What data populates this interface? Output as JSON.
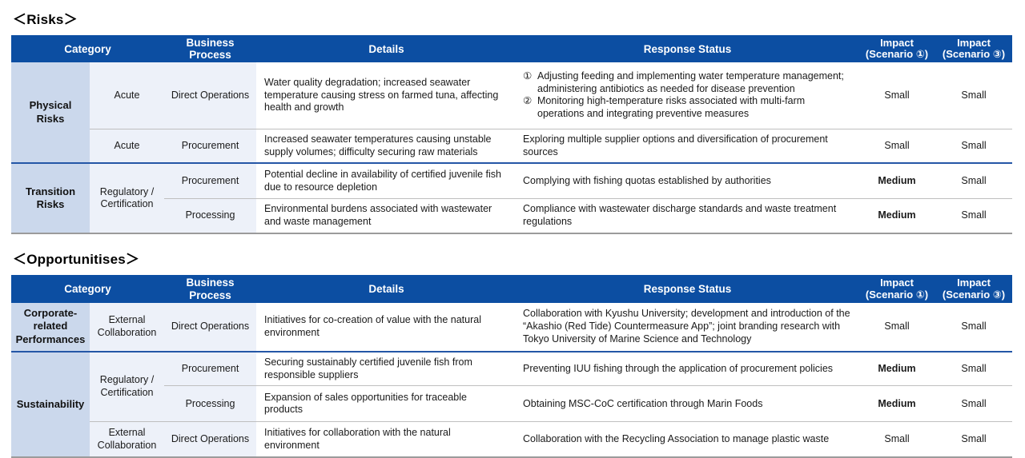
{
  "colors": {
    "header_bg": "#0c4ea2",
    "category_cell_bg": "#cbd8ec",
    "subcategory_cell_bg": "#edf1f9",
    "group_separator_line": "#2456a6",
    "row_separator_line": "#bfbfbf",
    "table_bottom_line": "#9b9b9b"
  },
  "column_headers": {
    "category": "Category",
    "business_process": "Business Process",
    "details": "Details",
    "response_status": "Response Status",
    "impact_scenario_1": "Impact\n(Scenario ①)",
    "impact_scenario_3": "Impact\n(Scenario ③)"
  },
  "risks": {
    "heading": "＜Risks＞",
    "rows": [
      {
        "category": "Physical\nRisks",
        "subcategory": "Acute",
        "business_process": "Direct Operations",
        "details": "Water quality degradation; increased seawater temperature causing stress on farmed tuna, affecting health and growth",
        "response_list": [
          {
            "marker": "①",
            "text": "Adjusting feeding and implementing water temperature management; administering antibiotics as needed for disease prevention"
          },
          {
            "marker": "②",
            "text": "Monitoring high-temperature risks associated with multi-farm operations and integrating preventive measures"
          }
        ],
        "impact1": {
          "value": "Small",
          "bold": false
        },
        "impact3": {
          "value": "Small",
          "bold": false
        }
      },
      {
        "subcategory": "Acute",
        "business_process": "Procurement",
        "details": "Increased seawater temperatures causing unstable supply volumes; difficulty securing raw materials",
        "response": "Exploring multiple supplier options and diversification of procurement sources",
        "impact1": {
          "value": "Small",
          "bold": false
        },
        "impact3": {
          "value": "Small",
          "bold": false
        }
      },
      {
        "category": "Transition\nRisks",
        "subcategory": "Regulatory /\nCertification",
        "business_process": "Procurement",
        "details": "Potential decline in availability of certified juvenile fish due to resource depletion",
        "response": "Complying with fishing quotas established by authorities",
        "impact1": {
          "value": "Medium",
          "bold": true
        },
        "impact3": {
          "value": "Small",
          "bold": false
        }
      },
      {
        "business_process": "Processing",
        "details": "Environmental burdens associated with wastewater and waste management",
        "response": "Compliance with wastewater discharge standards and waste treatment regulations",
        "impact1": {
          "value": "Medium",
          "bold": true
        },
        "impact3": {
          "value": "Small",
          "bold": false
        }
      }
    ]
  },
  "opportunities": {
    "heading": "＜Opportunitises＞",
    "rows": [
      {
        "category": "Corporate-\nrelated\nPerformances",
        "subcategory": "External\nCollaboration",
        "business_process": "Direct Operations",
        "details": "Initiatives for co-creation of value with the natural environment",
        "response": "Collaboration with Kyushu University; development and introduction of the “Akashio (Red Tide) Countermeasure App”; joint branding research with Tokyo University of Marine Science and Technology",
        "impact1": {
          "value": "Small",
          "bold": false
        },
        "impact3": {
          "value": "Small",
          "bold": false
        }
      },
      {
        "category": "Sustainability",
        "subcategory": "Regulatory /\nCertification",
        "business_process": "Procurement",
        "details": "Securing sustainably certified juvenile fish from responsible suppliers",
        "response": "Preventing IUU fishing through the application of procurement policies",
        "impact1": {
          "value": "Medium",
          "bold": true
        },
        "impact3": {
          "value": "Small",
          "bold": false
        }
      },
      {
        "business_process": "Processing",
        "details": "Expansion of sales opportunities for traceable products",
        "response": "Obtaining MSC-CoC certification through Marin Foods",
        "impact1": {
          "value": "Medium",
          "bold": true
        },
        "impact3": {
          "value": "Small",
          "bold": false
        }
      },
      {
        "subcategory": "External\nCollaboration",
        "business_process": "Direct Operations",
        "details": "Initiatives for collaboration with the natural environment",
        "response": "Collaboration with the Recycling Association to manage plastic waste",
        "impact1": {
          "value": "Small",
          "bold": false
        },
        "impact3": {
          "value": "Small",
          "bold": false
        }
      }
    ]
  }
}
